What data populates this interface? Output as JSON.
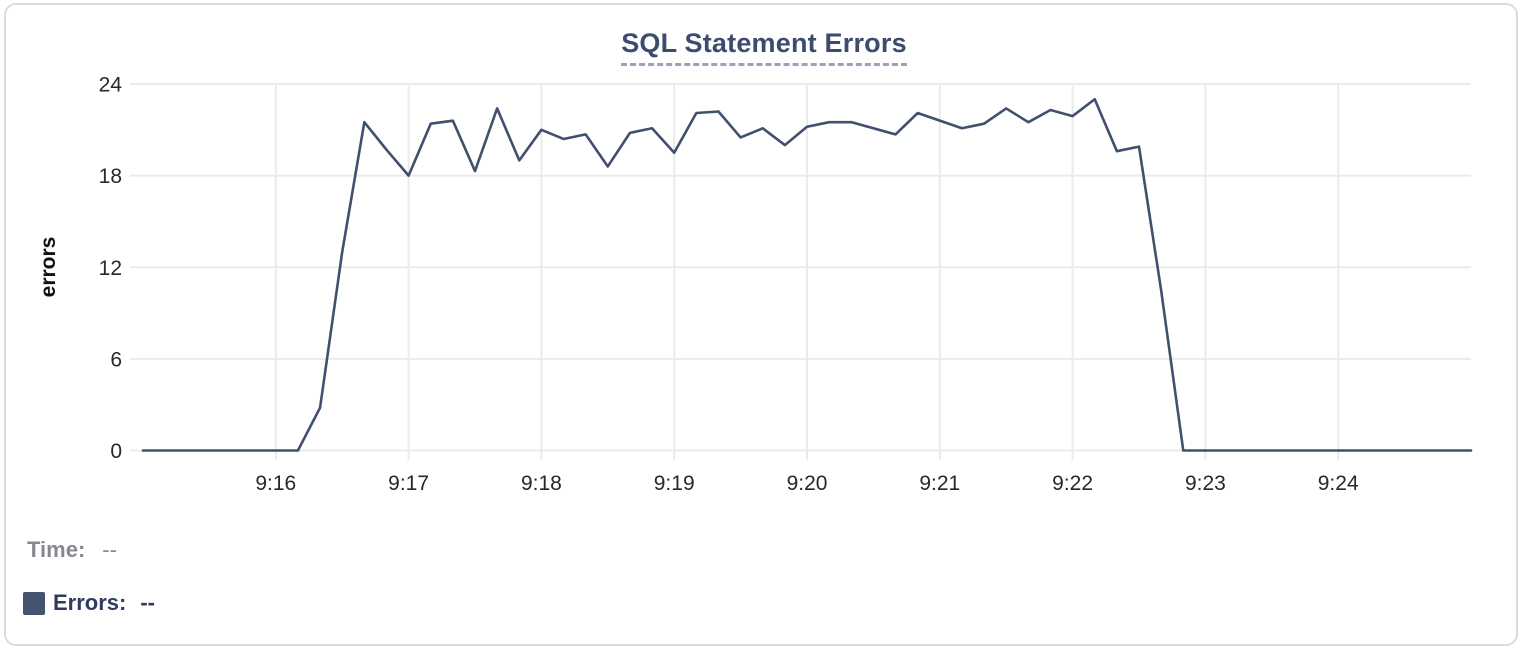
{
  "chart": {
    "title": "SQL Statement Errors",
    "y_axis_label": "errors"
  },
  "legend": {
    "time_label": "Time:",
    "time_value": "--",
    "errors_label": "Errors:",
    "errors_value": "--"
  },
  "colors": {
    "series_line": "#40506d",
    "legend_swatch": "#44536f",
    "title_text": "#3d4c6e",
    "title_underline": "#9aa4b8",
    "legend_errors_text": "#2e3c5e",
    "legend_time_text": "#85898f",
    "tick_label_text": "#26282b",
    "gridline": "#ebebeb",
    "card_border": "#dbdbdb",
    "background": "#ffffff"
  },
  "chart_data": {
    "type": "line",
    "title": "SQL Statement Errors",
    "xlabel": "",
    "ylabel": "errors",
    "ylim": [
      0,
      24
    ],
    "y_ticks": [
      0,
      6,
      12,
      18,
      24
    ],
    "x_domain_seconds": [
      0,
      600
    ],
    "x_axis": {
      "unit": "time",
      "start": "9:15",
      "end": "9:25",
      "tick_interval_seconds": 60,
      "point_interval_seconds": 10
    },
    "x_ticks": [
      {
        "label": "9:16",
        "t": 60
      },
      {
        "label": "9:17",
        "t": 120
      },
      {
        "label": "9:18",
        "t": 180
      },
      {
        "label": "9:19",
        "t": 240
      },
      {
        "label": "9:20",
        "t": 300
      },
      {
        "label": "9:21",
        "t": 360
      },
      {
        "label": "9:22",
        "t": 420
      },
      {
        "label": "9:23",
        "t": 480
      },
      {
        "label": "9:24",
        "t": 540
      }
    ],
    "grid": true,
    "legend_position": "bottom-left",
    "series": [
      {
        "name": "Errors",
        "points": [
          [
            0,
            0
          ],
          [
            10,
            0
          ],
          [
            20,
            0
          ],
          [
            30,
            0
          ],
          [
            40,
            0
          ],
          [
            50,
            0
          ],
          [
            60,
            0
          ],
          [
            70,
            0
          ],
          [
            80,
            2.8
          ],
          [
            90,
            13
          ],
          [
            100,
            21.5
          ],
          [
            110,
            19.7
          ],
          [
            120,
            18
          ],
          [
            130,
            21.4
          ],
          [
            140,
            21.6
          ],
          [
            150,
            18.3
          ],
          [
            160,
            22.4
          ],
          [
            170,
            19
          ],
          [
            180,
            21
          ],
          [
            190,
            20.4
          ],
          [
            200,
            20.7
          ],
          [
            210,
            18.6
          ],
          [
            220,
            20.8
          ],
          [
            230,
            21.1
          ],
          [
            240,
            19.5
          ],
          [
            250,
            22.1
          ],
          [
            260,
            22.2
          ],
          [
            270,
            20.5
          ],
          [
            280,
            21.1
          ],
          [
            290,
            20
          ],
          [
            300,
            21.2
          ],
          [
            310,
            21.5
          ],
          [
            320,
            21.5
          ],
          [
            330,
            21.1
          ],
          [
            340,
            20.7
          ],
          [
            350,
            22.1
          ],
          [
            360,
            21.6
          ],
          [
            370,
            21.1
          ],
          [
            380,
            21.4
          ],
          [
            390,
            22.4
          ],
          [
            400,
            21.5
          ],
          [
            410,
            22.3
          ],
          [
            420,
            21.9
          ],
          [
            430,
            23
          ],
          [
            440,
            19.6
          ],
          [
            450,
            19.9
          ],
          [
            460,
            10.5
          ],
          [
            470,
            0
          ],
          [
            480,
            0
          ],
          [
            490,
            0
          ],
          [
            500,
            0
          ],
          [
            510,
            0
          ],
          [
            520,
            0
          ],
          [
            530,
            0
          ],
          [
            540,
            0
          ],
          [
            550,
            0
          ],
          [
            560,
            0
          ],
          [
            570,
            0
          ],
          [
            580,
            0
          ],
          [
            590,
            0
          ],
          [
            600,
            0
          ]
        ]
      }
    ]
  }
}
